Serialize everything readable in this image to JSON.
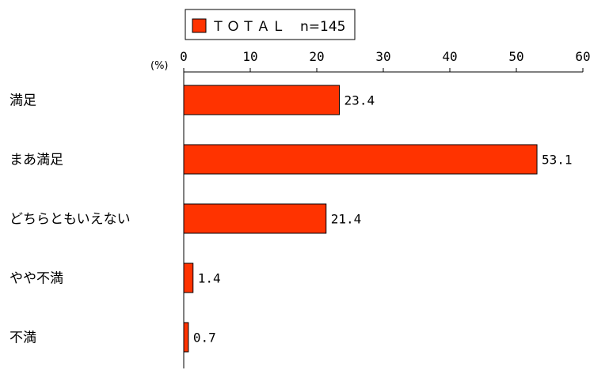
{
  "chart_data": {
    "type": "bar",
    "orientation": "horizontal",
    "unit_label": "(%)",
    "legend": {
      "entries": [
        {
          "swatch_color": "#ff3300",
          "label": "ＴＯＴＡＬ",
          "note": "n=145"
        }
      ],
      "placement": "top"
    },
    "xlim": [
      0,
      60
    ],
    "xticks": [
      0,
      10,
      20,
      30,
      40,
      50,
      60
    ],
    "categories": [
      "満足",
      "まあ満足",
      "どちらともいえない",
      "やや不満",
      "不満"
    ],
    "series": [
      {
        "name": "ＴＯＴＡＬ",
        "values": [
          23.4,
          53.1,
          21.4,
          1.4,
          0.7
        ],
        "value_labels": [
          "23.4",
          "53.1",
          "21.4",
          "1.4",
          "0.7"
        ],
        "color": "#ff3300"
      }
    ],
    "grid": false
  }
}
